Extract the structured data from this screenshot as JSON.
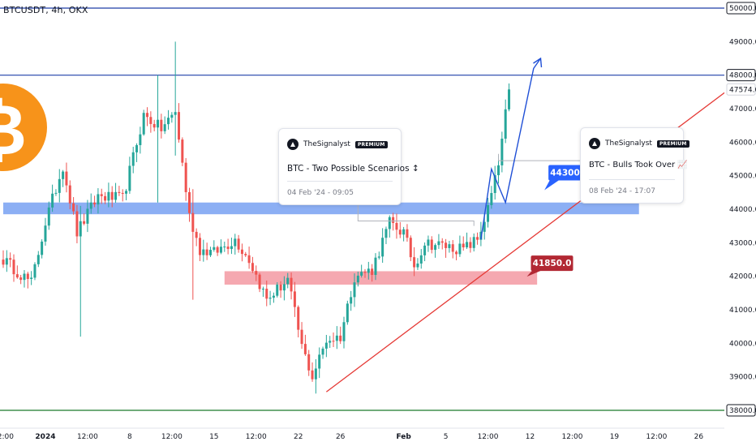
{
  "header": {
    "symbol_title": "BTCUSDT, 4h, OKX"
  },
  "colors": {
    "up": "#26a69a",
    "down": "#ef5350",
    "blue_zone": "#5b8def",
    "red_zone": "#f28b96",
    "blue_line": "#1e3fa8",
    "green_line": "#1b7a2a",
    "trend_line": "#e53935",
    "projection": "#1f4fd6",
    "bitcoin_orange": "#f7931a",
    "label_blue": "#2962ff",
    "label_red": "#b22833"
  },
  "chart_data": {
    "type": "candlestick",
    "timeframe": "4h",
    "exchange": "OKX",
    "symbol": "BTCUSDT",
    "ylim": [
      37500,
      50600
    ],
    "y_ticks": [
      {
        "value": 50000,
        "label": "50000.0",
        "highlight": true
      },
      {
        "value": 49000,
        "label": "49000.0"
      },
      {
        "value": 48000,
        "label": "48000.0",
        "highlight": true
      },
      {
        "value": 47574,
        "label": "47574.0",
        "current": true
      },
      {
        "value": 47000,
        "label": "47000.0"
      },
      {
        "value": 46000,
        "label": "46000.0"
      },
      {
        "value": 45000,
        "label": "45000.0"
      },
      {
        "value": 44000,
        "label": "44000.0"
      },
      {
        "value": 43000,
        "label": "43000.0"
      },
      {
        "value": 42000,
        "label": "42000.0"
      },
      {
        "value": 41000,
        "label": "41000.0"
      },
      {
        "value": 40000,
        "label": "40000.0"
      },
      {
        "value": 39000,
        "label": "39000.0"
      },
      {
        "value": 38000,
        "label": "38000.0",
        "highlight": true
      }
    ],
    "x_ticks": [
      "12:00",
      "2024",
      "12:00",
      "8",
      "12:00",
      "15",
      "12:00",
      "22",
      "26",
      "Feb",
      "5",
      "12:00",
      "12",
      "12:00",
      "19",
      "12:00",
      "26"
    ],
    "x_tick_bar_index": [
      0,
      12,
      24,
      36,
      48,
      60,
      72,
      84,
      96,
      114,
      126,
      138,
      150,
      162,
      174,
      186,
      198
    ],
    "bar_count_plotted": 145,
    "anchors": [
      {
        "bar": 0,
        "price": 42500
      },
      {
        "bar": 8,
        "price": 41800
      },
      {
        "bar": 12,
        "price": 43600
      },
      {
        "bar": 17,
        "price": 45300
      },
      {
        "bar": 21,
        "price": 43300
      },
      {
        "bar": 27,
        "price": 44400
      },
      {
        "bar": 34,
        "price": 44300
      },
      {
        "bar": 40,
        "price": 46800
      },
      {
        "bar": 45,
        "price": 46400
      },
      {
        "bar": 49,
        "price": 46900
      },
      {
        "bar": 53,
        "price": 43800
      },
      {
        "bar": 56,
        "price": 42800
      },
      {
        "bar": 60,
        "price": 42700
      },
      {
        "bar": 66,
        "price": 43100
      },
      {
        "bar": 70,
        "price": 42500
      },
      {
        "bar": 75,
        "price": 41300
      },
      {
        "bar": 81,
        "price": 41900
      },
      {
        "bar": 85,
        "price": 39900
      },
      {
        "bar": 88,
        "price": 39000
      },
      {
        "bar": 92,
        "price": 40100
      },
      {
        "bar": 96,
        "price": 40200
      },
      {
        "bar": 100,
        "price": 42000
      },
      {
        "bar": 105,
        "price": 42200
      },
      {
        "bar": 110,
        "price": 43600
      },
      {
        "bar": 114,
        "price": 43300
      },
      {
        "bar": 117,
        "price": 42300
      },
      {
        "bar": 120,
        "price": 43000
      },
      {
        "bar": 126,
        "price": 42900
      },
      {
        "bar": 131,
        "price": 42800
      },
      {
        "bar": 135,
        "price": 43100
      },
      {
        "bar": 138,
        "price": 44000
      },
      {
        "bar": 141,
        "price": 45300
      },
      {
        "bar": 144,
        "price": 47574
      }
    ],
    "spikes": [
      {
        "bar": 22,
        "high": 44100,
        "low": 40200
      },
      {
        "bar": 44,
        "high": 48000,
        "low": 44200
      },
      {
        "bar": 49,
        "high": 49000,
        "low": 45600
      },
      {
        "bar": 54,
        "high": 44600,
        "low": 41300
      },
      {
        "bar": 89,
        "high": 39400,
        "low": 38500
      }
    ],
    "levels": [
      {
        "value": 50000,
        "color": "#1e3fa8"
      },
      {
        "value": 48000,
        "color": "#1e3fa8"
      },
      {
        "value": 38000,
        "color": "#1b7a2a"
      }
    ],
    "zones": [
      {
        "name": "blue-zone",
        "top": 44200,
        "bottom": 43850,
        "from_bar": 0,
        "to_bar": 181,
        "color": "#5b8def"
      },
      {
        "name": "red-zone",
        "top": 42150,
        "bottom": 41750,
        "from_bar": 63,
        "to_bar": 152,
        "color": "#f28b96"
      }
    ],
    "trendline": {
      "from": {
        "bar": 92,
        "price": 38550
      },
      "to": {
        "bar": 212,
        "price": 48000
      }
    },
    "projection": [
      {
        "bar": 136,
        "price": 43100
      },
      {
        "bar": 139,
        "price": 45200
      },
      {
        "bar": 143,
        "price": 44200
      },
      {
        "bar": 151,
        "price": 48200
      },
      {
        "bar": 153,
        "price": 48500
      }
    ],
    "price_labels": [
      {
        "text": "44300.0",
        "bar": 158,
        "price": 45100,
        "color": "#2962ff"
      },
      {
        "text": "41850.0",
        "bar": 153,
        "price": 42400,
        "color": "#b22833"
      }
    ],
    "left_connector": {
      "from_bar": 101,
      "to_bar": 134,
      "price": 43650
    },
    "right_connector": {
      "bar": 149,
      "price": 45450
    }
  },
  "ideas": [
    {
      "author": "TheSignalyst",
      "badge": "PREMIUM",
      "title": "BTC - Two Possible Scenarios ↕",
      "date": "04 Feb '24 - 09:05"
    },
    {
      "author": "TheSignalyst",
      "badge": "PREMIUM",
      "title": "BTC - Bulls Took Over 📈",
      "date": "08 Feb '24 - 17:07"
    }
  ],
  "icons": {
    "bitcoin": "bitcoin-logo-icon",
    "signalyst": "signalyst-logo-icon"
  }
}
